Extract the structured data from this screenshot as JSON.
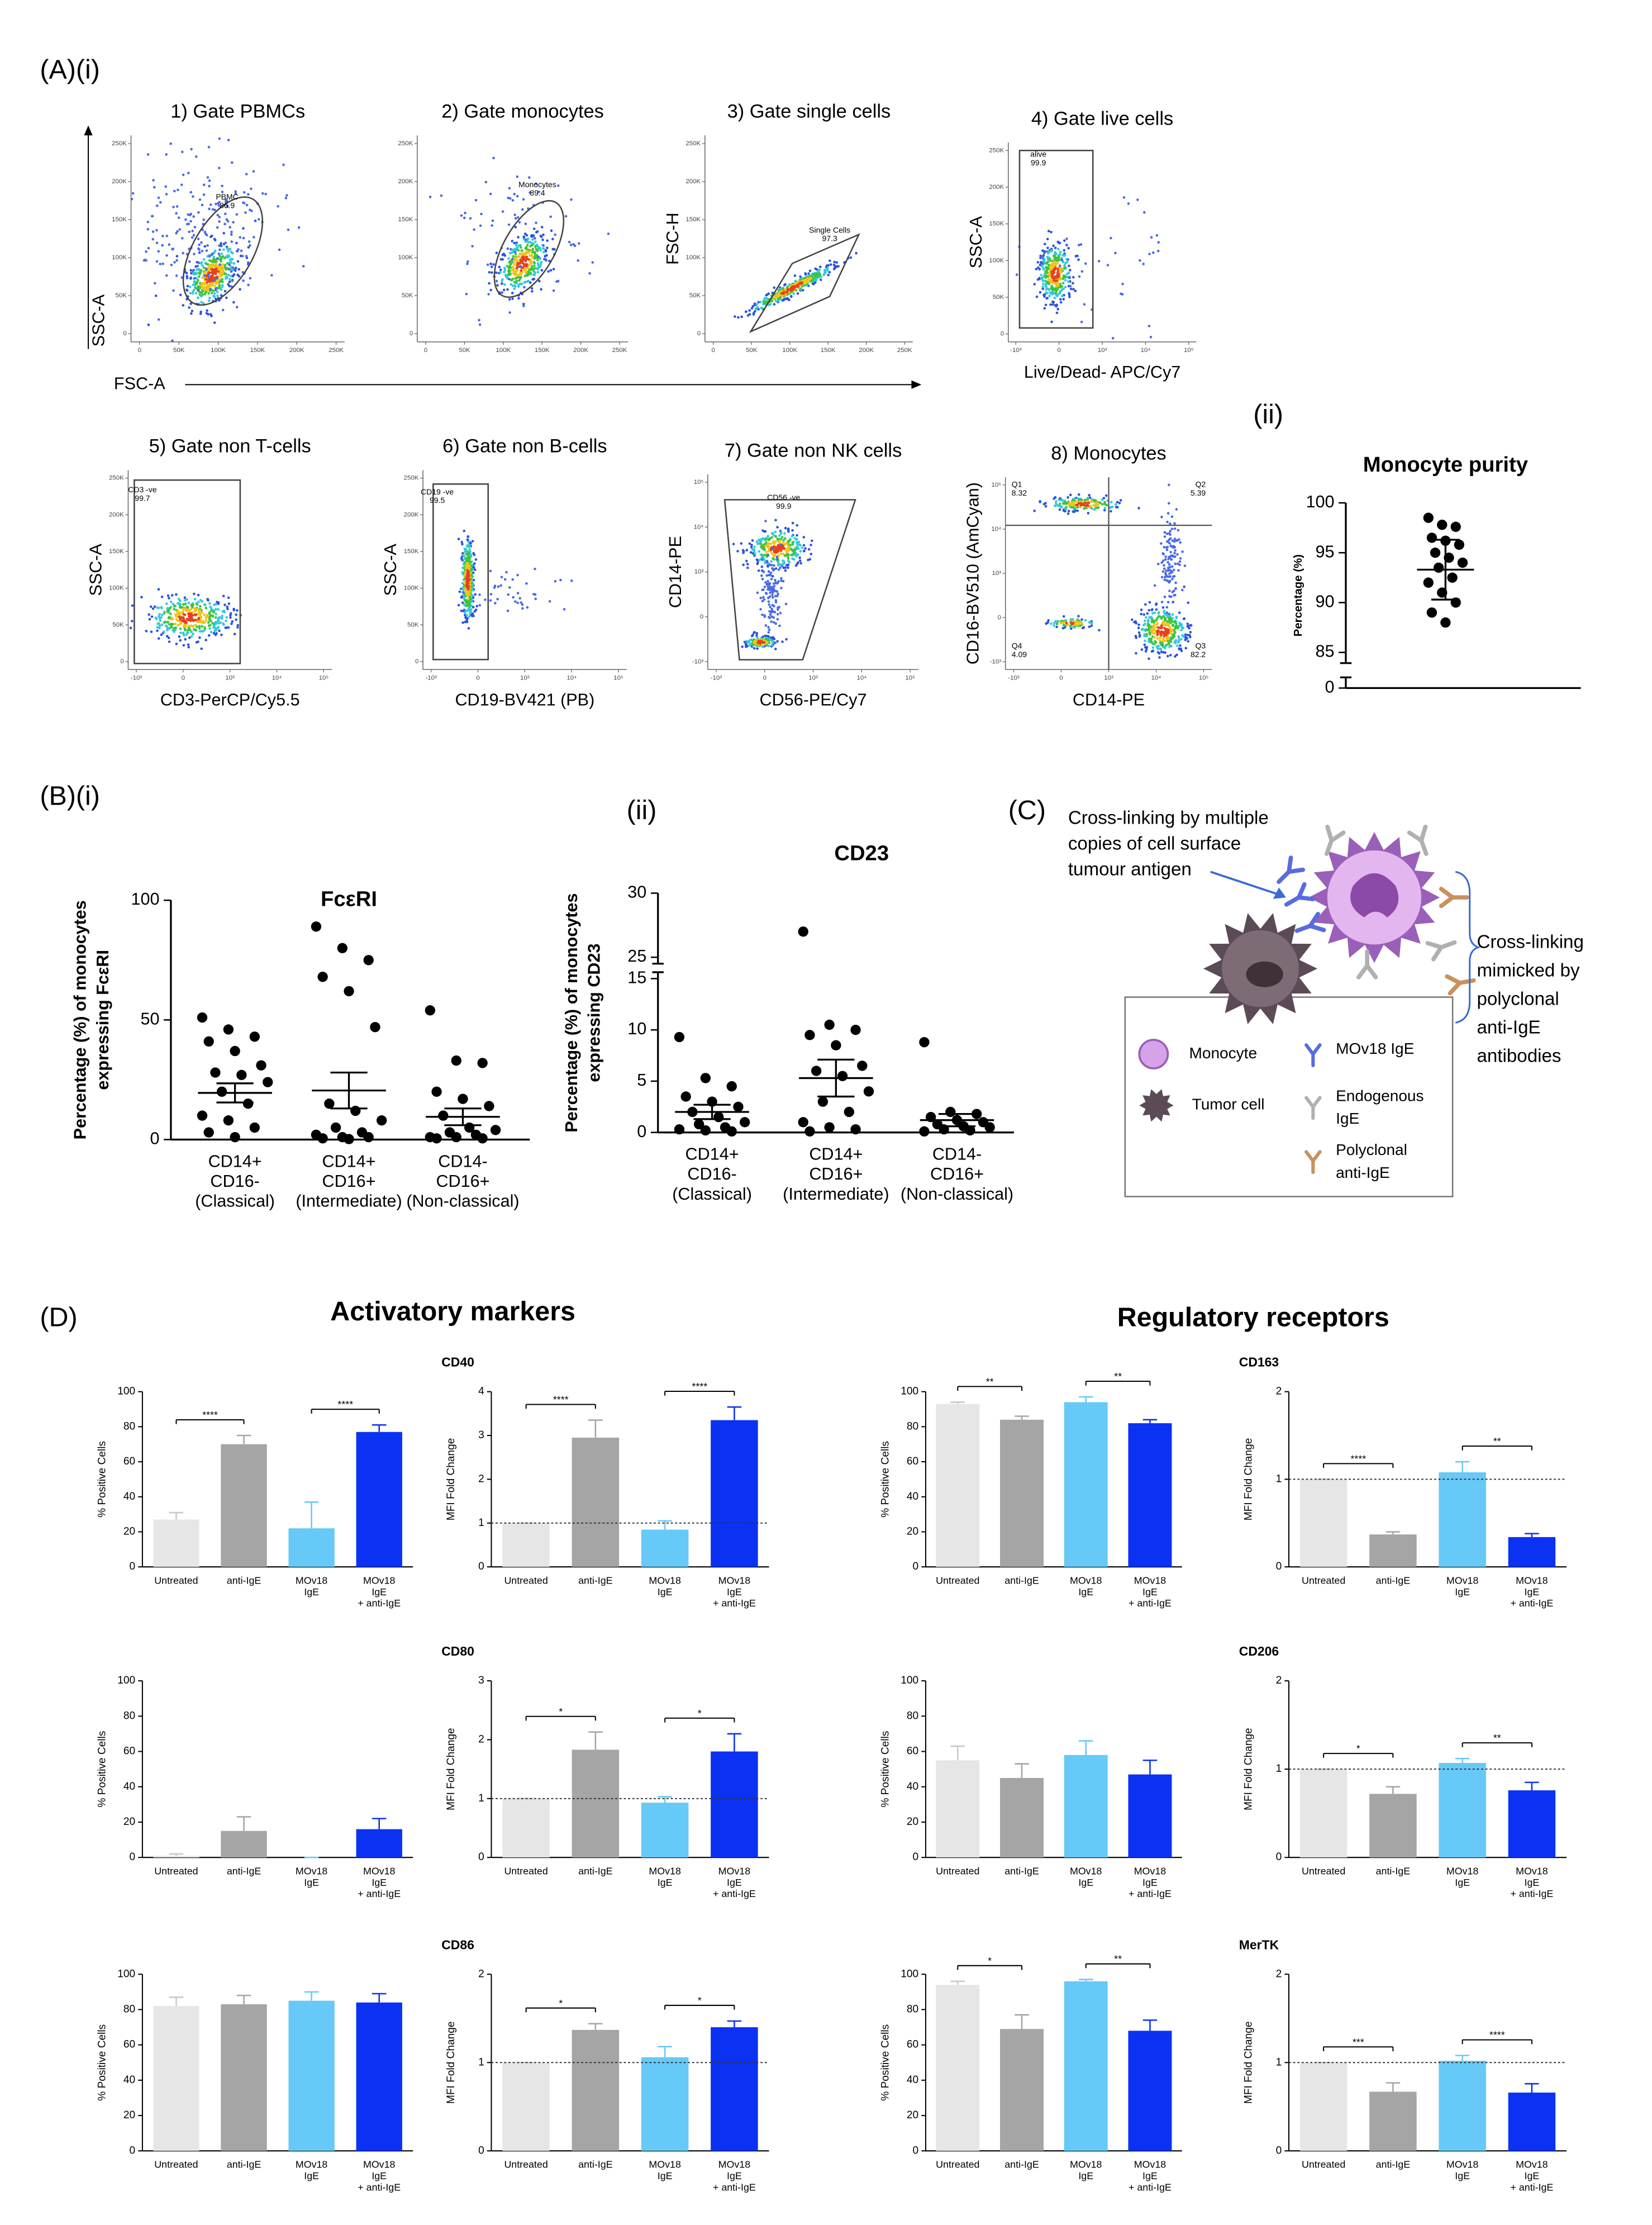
{
  "panel_labels": {
    "a_i": "(A)(i)",
    "a_ii": "(ii)",
    "b_i": "(B)(i)",
    "b_ii": "(ii)",
    "c": "(C)",
    "d": "(D)"
  },
  "flow_plots": [
    {
      "title": "1) Gate PBMCs",
      "x_label": "FSC-A",
      "y_label": "SSC-A",
      "gate_label": "PBMC",
      "gate_value": 86.9,
      "xticks": [
        "0",
        "50K",
        "100K",
        "150K",
        "200K",
        "250K"
      ],
      "yticks": [
        "0",
        "50K",
        "100K",
        "150K",
        "200K",
        "250K"
      ]
    },
    {
      "title": "2) Gate monocytes",
      "gate_label": "Monocytes",
      "gate_value": 89.4,
      "xticks": [
        "0",
        "50K",
        "100K",
        "150K",
        "200K",
        "250K"
      ],
      "yticks": [
        "0",
        "50K",
        "100K",
        "150K",
        "200K",
        "250K"
      ]
    },
    {
      "title": "3) Gate single cells",
      "y_label": "FSC-H",
      "gate_label": "Single Cells",
      "gate_value": 97.3,
      "xticks": [
        "0",
        "50K",
        "100K",
        "150K",
        "200K",
        "250K"
      ],
      "yticks": [
        "0",
        "50K",
        "100K",
        "150K",
        "200K",
        "250K"
      ]
    },
    {
      "title": "4) Gate live cells",
      "x_label": "Live/Dead- APC/Cy7",
      "y_label": "SSC-A",
      "gate_label": "alive",
      "gate_value": 99.9,
      "xticks": [
        "-10³",
        "0",
        "10³",
        "10⁴",
        "10⁵"
      ],
      "yticks": [
        "0",
        "50K",
        "100K",
        "150K",
        "200K",
        "250K"
      ]
    },
    {
      "title": "5) Gate non T-cells",
      "x_label": "CD3-PerCP/Cy5.5",
      "y_label": "SSC-A",
      "gate_label": "CD3 -ve",
      "gate_value": 99.7,
      "xticks": [
        "-10³",
        "0",
        "10³",
        "10⁴",
        "10⁵"
      ],
      "yticks": [
        "0",
        "50K",
        "100K",
        "150K",
        "200K",
        "250K"
      ]
    },
    {
      "title": "6) Gate non B-cells",
      "x_label": "CD19-BV421 (PB)",
      "y_label": "SSC-A",
      "gate_label": "CD19 -ve",
      "gate_value": 99.5,
      "xticks": [
        "-10³",
        "0",
        "10³",
        "10⁴",
        "10⁵"
      ],
      "yticks": [
        "0",
        "50K",
        "100K",
        "150K",
        "200K",
        "250K"
      ]
    },
    {
      "title": "7) Gate non NK cells",
      "x_label": "CD56-PE/Cy7",
      "y_label": "CD14-PE",
      "gate_label": "CD56 -ve",
      "gate_value": 99.9,
      "xticks": [
        "-10³",
        "0",
        "10³",
        "10⁴",
        "10⁵"
      ],
      "yticks": [
        "-10³",
        "0",
        "10³",
        "10⁴",
        "10⁵"
      ]
    },
    {
      "title": "8) Monocytes",
      "x_label": "CD14-PE",
      "y_label": "CD16-BV510 (AmCyan)",
      "quadrants": [
        {
          "label": "Q1",
          "value": 8.32
        },
        {
          "label": "Q2",
          "value": 5.39
        },
        {
          "label": "Q3",
          "value": 82.2
        },
        {
          "label": "Q4",
          "value": 4.09
        }
      ],
      "xticks": [
        "-10³",
        "0",
        "10³",
        "10⁴",
        "10⁵"
      ],
      "yticks": [
        "-10³",
        "0",
        "10³",
        "10⁴",
        "10⁵"
      ]
    }
  ],
  "section_titles": [
    "Activatory markers",
    "Regulatory receptors"
  ],
  "diagram": {
    "annotation_top": [
      "Cross-linking by multiple",
      "copies of cell surface",
      "tumour antigen"
    ],
    "annotation_right": [
      "Cross-linking",
      "mimicked by",
      "polyclonal",
      "anti-IgE",
      "antibodies"
    ],
    "legend": [
      {
        "label": [
          "Monocyte"
        ]
      },
      {
        "label": [
          "Tumor cell"
        ]
      },
      {
        "label": [
          "MOv18 IgE"
        ]
      },
      {
        "label": [
          "Endogenous",
          "IgE"
        ]
      },
      {
        "label": [
          "Polyclonal",
          "anti-IgE"
        ]
      }
    ]
  },
  "chart_data": [
    {
      "type": "dot",
      "title": "Monocyte purity",
      "y_label": [
        "Percentage (%)"
      ],
      "values": [
        [
          98.5,
          97.8,
          97.6,
          96.5,
          96.2,
          95.8,
          95,
          94.5,
          94,
          93.5,
          92.5,
          92,
          91,
          90,
          89,
          88
        ]
      ],
      "mean": [
        93.3
      ],
      "error": [
        3.0
      ],
      "ylim": [
        0,
        100
      ],
      "y_break": [
        0,
        85
      ],
      "yticks": [
        0,
        85,
        90,
        95,
        100
      ]
    },
    {
      "type": "dot",
      "title": "FcεRI",
      "y_label": [
        "Percentage (%) of monocytes",
        "expressing FcεRI"
      ],
      "categories": [
        [
          "CD14+",
          "CD16-",
          "(Classical)"
        ],
        [
          "CD14+",
          "CD16+",
          "(Intermediate)"
        ],
        [
          "CD14-",
          "CD16+",
          "(Non-classical)"
        ]
      ],
      "values": [
        [
          51,
          46,
          43,
          41,
          37,
          31,
          28,
          27,
          24,
          20,
          15,
          10,
          8,
          5,
          3,
          1
        ],
        [
          89,
          80,
          75,
          68,
          62,
          47,
          15,
          12,
          8,
          5,
          3,
          2,
          1,
          1,
          0.5,
          0.2
        ],
        [
          54,
          33,
          32,
          20,
          17,
          14,
          10,
          5,
          4,
          3,
          2,
          1,
          1,
          0.5,
          0.5
        ]
      ],
      "mean": [
        19.5,
        20.5,
        9.5
      ],
      "error": [
        4,
        7.5,
        3.5
      ],
      "ylim": [
        0,
        100
      ],
      "yticks": [
        0,
        50,
        100
      ]
    },
    {
      "type": "dot",
      "title": "CD23",
      "y_label": [
        "Percentage (%) of monocytes",
        "expressing CD23"
      ],
      "categories": [
        [
          "CD14+",
          "CD16-",
          "(Classical)"
        ],
        [
          "CD14+",
          "CD16+",
          "(Intermediate)"
        ],
        [
          "CD14-",
          "CD16+",
          "(Non-classical)"
        ]
      ],
      "values": [
        [
          9.3,
          5.3,
          4.5,
          3.5,
          3,
          2.5,
          2,
          1.5,
          1,
          0.8,
          0.5,
          0.3,
          0.2,
          0.1
        ],
        [
          27,
          10.5,
          10,
          9.5,
          8.5,
          6.5,
          6,
          5.5,
          4,
          3,
          2,
          1,
          0.5,
          0.3,
          0.1
        ],
        [
          8.8,
          2,
          1.8,
          1.5,
          1.2,
          1,
          0.8,
          0.6,
          0.5,
          0.3,
          0.2,
          0.1
        ]
      ],
      "mean": [
        2,
        5.3,
        1.2
      ],
      "error": [
        0.7,
        1.8,
        0.6
      ],
      "ylim": [
        0,
        30
      ],
      "y_break": [
        15,
        25
      ],
      "yticks": [
        0,
        5,
        10,
        15,
        25,
        30
      ]
    },
    {
      "type": "bar",
      "y_label": "% Positive Cells",
      "categories": [
        [
          "Untreated"
        ],
        [
          "anti-IgE"
        ],
        [
          "MOv18",
          "IgE"
        ],
        [
          "MOv18",
          "IgE",
          "+ anti-IgE"
        ]
      ],
      "colors": [
        "#e6e6e6",
        "#a5a5a5",
        "#66c9f7",
        "#0b32f2"
      ],
      "values": [
        27,
        70,
        22,
        77
      ],
      "errors": [
        4,
        5,
        15,
        4
      ],
      "ylim": [
        0,
        100
      ],
      "yticks": [
        0,
        20,
        40,
        60,
        80,
        100
      ],
      "comparisons": [
        "****",
        "****"
      ]
    },
    {
      "type": "bar",
      "title": "CD40",
      "y_label": "MFI Fold Change",
      "categories": [
        [
          "Untreated"
        ],
        [
          "anti-IgE"
        ],
        [
          "MOv18",
          "IgE"
        ],
        [
          "MOv18",
          "IgE",
          "+ anti-IgE"
        ]
      ],
      "colors": [
        "#e6e6e6",
        "#a5a5a5",
        "#66c9f7",
        "#0b32f2"
      ],
      "values": [
        1,
        2.95,
        0.85,
        3.35
      ],
      "errors": [
        0,
        0.4,
        0.2,
        0.3
      ],
      "ylim": [
        0,
        4
      ],
      "yticks": [
        0,
        1,
        2,
        3,
        4
      ],
      "reference_line": 1,
      "comparisons": [
        "****",
        "****"
      ]
    },
    {
      "type": "bar",
      "y_label": "% Positive Cells",
      "categories": [
        [
          "Untreated"
        ],
        [
          "anti-IgE"
        ],
        [
          "MOv18",
          "IgE"
        ],
        [
          "MOv18",
          "IgE",
          "+ anti-IgE"
        ]
      ],
      "colors": [
        "#e6e6e6",
        "#a5a5a5",
        "#66c9f7",
        "#0b32f2"
      ],
      "values": [
        93,
        84,
        94,
        82
      ],
      "errors": [
        1,
        2,
        3,
        2
      ],
      "ylim": [
        0,
        100
      ],
      "yticks": [
        0,
        20,
        40,
        60,
        80,
        100
      ],
      "comparisons": [
        "**",
        "**"
      ]
    },
    {
      "type": "bar",
      "title": "CD163",
      "y_label": "MFI Fold Change",
      "categories": [
        [
          "Untreated"
        ],
        [
          "anti-IgE"
        ],
        [
          "MOv18",
          "IgE"
        ],
        [
          "MOv18",
          "IgE",
          "+ anti-IgE"
        ]
      ],
      "colors": [
        "#e6e6e6",
        "#a5a5a5",
        "#66c9f7",
        "#0b32f2"
      ],
      "values": [
        1,
        0.37,
        1.08,
        0.34
      ],
      "errors": [
        0,
        0.03,
        0.12,
        0.04
      ],
      "ylim": [
        0,
        2
      ],
      "yticks": [
        0,
        1,
        2
      ],
      "reference_line": 1,
      "comparisons": [
        "****",
        "**"
      ]
    },
    {
      "type": "bar",
      "y_label": "% Positive Cells",
      "categories": [
        [
          "Untreated"
        ],
        [
          "anti-IgE"
        ],
        [
          "MOv18",
          "IgE"
        ],
        [
          "MOv18",
          "IgE",
          "+ anti-IgE"
        ]
      ],
      "colors": [
        "#e6e6e6",
        "#a5a5a5",
        "#66c9f7",
        "#0b32f2"
      ],
      "values": [
        1,
        15,
        0,
        16
      ],
      "errors": [
        1,
        8,
        0,
        6
      ],
      "ylim": [
        0,
        100
      ],
      "yticks": [
        0,
        20,
        40,
        60,
        80,
        100
      ]
    },
    {
      "type": "bar",
      "title": "CD80",
      "y_label": "MFI Fold Change",
      "categories": [
        [
          "Untreated"
        ],
        [
          "anti-IgE"
        ],
        [
          "MOv18",
          "IgE"
        ],
        [
          "MOv18",
          "IgE",
          "+ anti-IgE"
        ]
      ],
      "colors": [
        "#e6e6e6",
        "#a5a5a5",
        "#66c9f7",
        "#0b32f2"
      ],
      "values": [
        1,
        1.83,
        0.93,
        1.8
      ],
      "errors": [
        0,
        0.3,
        0.1,
        0.3
      ],
      "ylim": [
        0,
        3
      ],
      "yticks": [
        0,
        1,
        2,
        3
      ],
      "reference_line": 1,
      "comparisons": [
        "*",
        "*"
      ]
    },
    {
      "type": "bar",
      "y_label": "% Positive Cells",
      "categories": [
        [
          "Untreated"
        ],
        [
          "anti-IgE"
        ],
        [
          "MOv18",
          "IgE"
        ],
        [
          "MOv18",
          "IgE",
          "+ anti-IgE"
        ]
      ],
      "colors": [
        "#e6e6e6",
        "#a5a5a5",
        "#66c9f7",
        "#0b32f2"
      ],
      "values": [
        55,
        45,
        58,
        47
      ],
      "errors": [
        8,
        8,
        8,
        8
      ],
      "ylim": [
        0,
        100
      ],
      "yticks": [
        0,
        20,
        40,
        60,
        80,
        100
      ]
    },
    {
      "type": "bar",
      "title": "CD206",
      "y_label": "MFI Fold Change",
      "categories": [
        [
          "Untreated"
        ],
        [
          "anti-IgE"
        ],
        [
          "MOv18",
          "IgE"
        ],
        [
          "MOv18",
          "IgE",
          "+ anti-IgE"
        ]
      ],
      "colors": [
        "#e6e6e6",
        "#a5a5a5",
        "#66c9f7",
        "#0b32f2"
      ],
      "values": [
        1,
        0.72,
        1.07,
        0.76
      ],
      "errors": [
        0,
        0.08,
        0.05,
        0.09
      ],
      "ylim": [
        0,
        2
      ],
      "yticks": [
        0,
        1,
        2
      ],
      "reference_line": 1,
      "comparisons": [
        "*",
        "**"
      ]
    },
    {
      "type": "bar",
      "y_label": "% Positive Cells",
      "categories": [
        [
          "Untreated"
        ],
        [
          "anti-IgE"
        ],
        [
          "MOv18",
          "IgE"
        ],
        [
          "MOv18",
          "IgE",
          "+ anti-IgE"
        ]
      ],
      "colors": [
        "#e6e6e6",
        "#a5a5a5",
        "#66c9f7",
        "#0b32f2"
      ],
      "values": [
        82,
        83,
        85,
        84
      ],
      "errors": [
        5,
        5,
        5,
        5
      ],
      "ylim": [
        0,
        100
      ],
      "yticks": [
        0,
        20,
        40,
        60,
        80,
        100
      ]
    },
    {
      "type": "bar",
      "title": "CD86",
      "y_label": "MFI Fold Change",
      "categories": [
        [
          "Untreated"
        ],
        [
          "anti-IgE"
        ],
        [
          "MOv18",
          "IgE"
        ],
        [
          "MOv18",
          "IgE",
          "+ anti-IgE"
        ]
      ],
      "colors": [
        "#e6e6e6",
        "#a5a5a5",
        "#66c9f7",
        "#0b32f2"
      ],
      "values": [
        1,
        1.37,
        1.06,
        1.4
      ],
      "errors": [
        0,
        0.07,
        0.12,
        0.07
      ],
      "ylim": [
        0,
        2
      ],
      "yticks": [
        0,
        1,
        2
      ],
      "reference_line": 1,
      "comparisons": [
        "*",
        "*"
      ]
    },
    {
      "type": "bar",
      "y_label": "% Positive Cells",
      "categories": [
        [
          "Untreated"
        ],
        [
          "anti-IgE"
        ],
        [
          "MOv18",
          "IgE"
        ],
        [
          "MOv18",
          "IgE",
          "+ anti-IgE"
        ]
      ],
      "colors": [
        "#e6e6e6",
        "#a5a5a5",
        "#66c9f7",
        "#0b32f2"
      ],
      "values": [
        94,
        69,
        96,
        68
      ],
      "errors": [
        2,
        8,
        1,
        6
      ],
      "ylim": [
        0,
        100
      ],
      "yticks": [
        0,
        20,
        40,
        60,
        80,
        100
      ],
      "comparisons": [
        "*",
        "**"
      ]
    },
    {
      "type": "bar",
      "title": "MerTK",
      "y_label": "MFI Fold Change",
      "categories": [
        [
          "Untreated"
        ],
        [
          "anti-IgE"
        ],
        [
          "MOv18",
          "IgE"
        ],
        [
          "MOv18",
          "IgE",
          "+ anti-IgE"
        ]
      ],
      "colors": [
        "#e6e6e6",
        "#a5a5a5",
        "#66c9f7",
        "#0b32f2"
      ],
      "values": [
        1,
        0.67,
        1.02,
        0.66
      ],
      "errors": [
        0,
        0.1,
        0.06,
        0.1
      ],
      "ylim": [
        0,
        2
      ],
      "yticks": [
        0,
        1,
        2
      ],
      "reference_line": 1,
      "comparisons": [
        "***",
        "****"
      ]
    }
  ]
}
